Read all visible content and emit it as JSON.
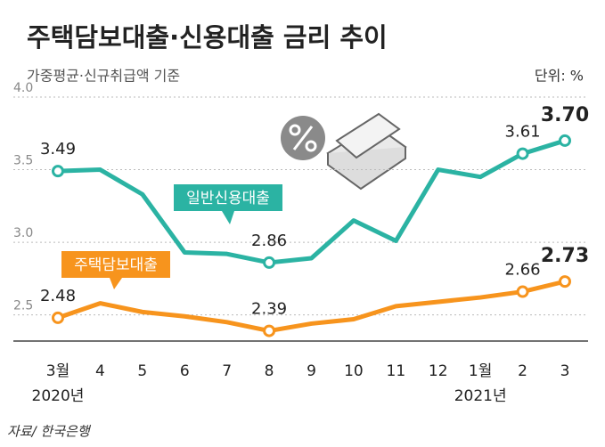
{
  "chart_data": {
    "type": "line",
    "title": "주택담보대출·신용대출 금리 추이",
    "subtitle": "가중평균·신규취급액 기준",
    "unit": "단위: %",
    "source": "자료/ 한국은행",
    "categories": [
      "3월",
      "4",
      "5",
      "6",
      "7",
      "8",
      "9",
      "10",
      "11",
      "12",
      "1월",
      "2",
      "3"
    ],
    "year_labels": [
      {
        "category": "3월",
        "label": "2020년"
      },
      {
        "category": "1월",
        "label": "2021년"
      }
    ],
    "series": [
      {
        "name": "일반신용대출",
        "color": "#2bb3a3",
        "values": [
          3.49,
          3.5,
          3.33,
          2.93,
          2.92,
          2.86,
          2.89,
          3.15,
          3.01,
          3.5,
          3.45,
          3.61,
          3.7
        ],
        "value_labels": [
          "3.49",
          null,
          null,
          null,
          null,
          "2.86",
          null,
          null,
          null,
          null,
          null,
          "3.61",
          "3.70"
        ]
      },
      {
        "name": "주택담보대출",
        "color": "#f7941d",
        "values": [
          2.48,
          2.58,
          2.52,
          2.49,
          2.45,
          2.39,
          2.44,
          2.47,
          2.56,
          2.59,
          2.62,
          2.66,
          2.73
        ],
        "value_labels": [
          "2.48",
          null,
          null,
          null,
          null,
          "2.39",
          null,
          null,
          null,
          null,
          null,
          "2.66",
          "2.73"
        ]
      }
    ],
    "ylim": [
      2.32,
      4.0
    ],
    "yticks": [
      {
        "value": 2.5,
        "label": "2.5"
      },
      {
        "value": 3.0,
        "label": "3.0"
      },
      {
        "value": 3.5,
        "label": "3.5"
      },
      {
        "value": 4.0,
        "label": "4.0"
      }
    ],
    "grid": true
  }
}
